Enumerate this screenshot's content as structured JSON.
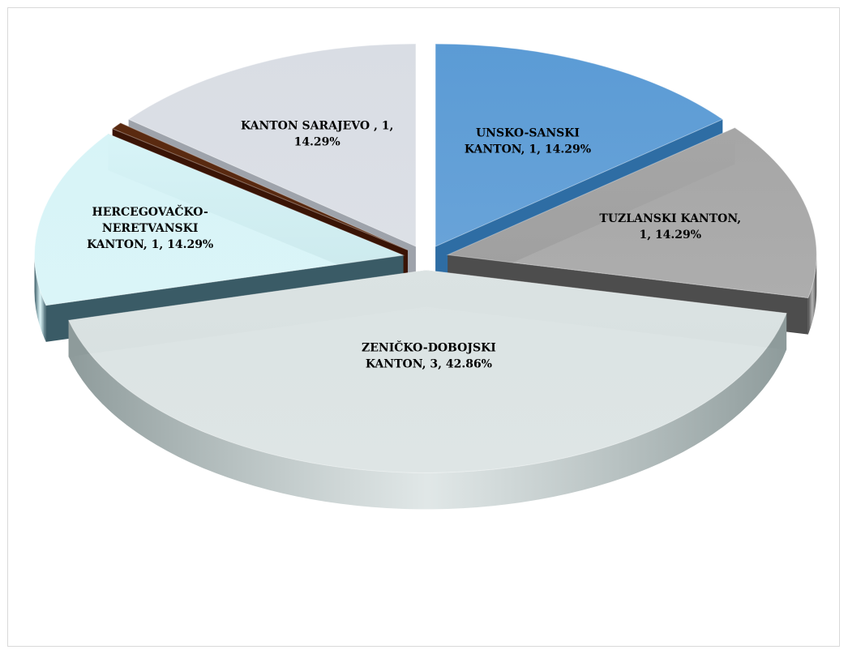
{
  "chart_data": {
    "type": "pie",
    "title": "",
    "categories": [
      "UNSKO-SANSKI KANTON",
      "TUZLANSKI KANTON",
      "ZENIČKO-DOBOJSKI KANTON",
      "HERCEGOVAČKO-NERETVANSKI KANTON",
      "",
      "KANTON SARAJEVO"
    ],
    "values": [
      1,
      1,
      3,
      1,
      0.04,
      1
    ],
    "percents": [
      "14.29%",
      "14.29%",
      "42.86%",
      "14.29%",
      "",
      "14.29%"
    ],
    "colors": [
      "#5b9bd5",
      "#a6a6a6",
      "#dbe3e3",
      "#d7f4f7",
      "#5a2a10",
      "#d9dde4"
    ],
    "side_colors": [
      "#2e6da4",
      "#4d4d4d",
      "#8e9b9b",
      "#3a5b66",
      "#3a1405",
      "#9ea3ab"
    ],
    "labels": [
      [
        "UNSKO-SANSKI",
        "KANTON, 1, 14.29%"
      ],
      [
        "TUZLANSKI KANTON,",
        "1, 14.29%"
      ],
      [
        "ZENIČKO-DOBOJSKI",
        "KANTON, 3, 42.86%"
      ],
      [
        "HERCEGOVAČKO-",
        "NERETVANSKI",
        "KANTON, 1, 14.29%"
      ],
      [],
      [
        "KANTON SARAJEVO , 1,",
        "14.29%"
      ]
    ],
    "legend": "none",
    "style": "3d-exploded"
  }
}
